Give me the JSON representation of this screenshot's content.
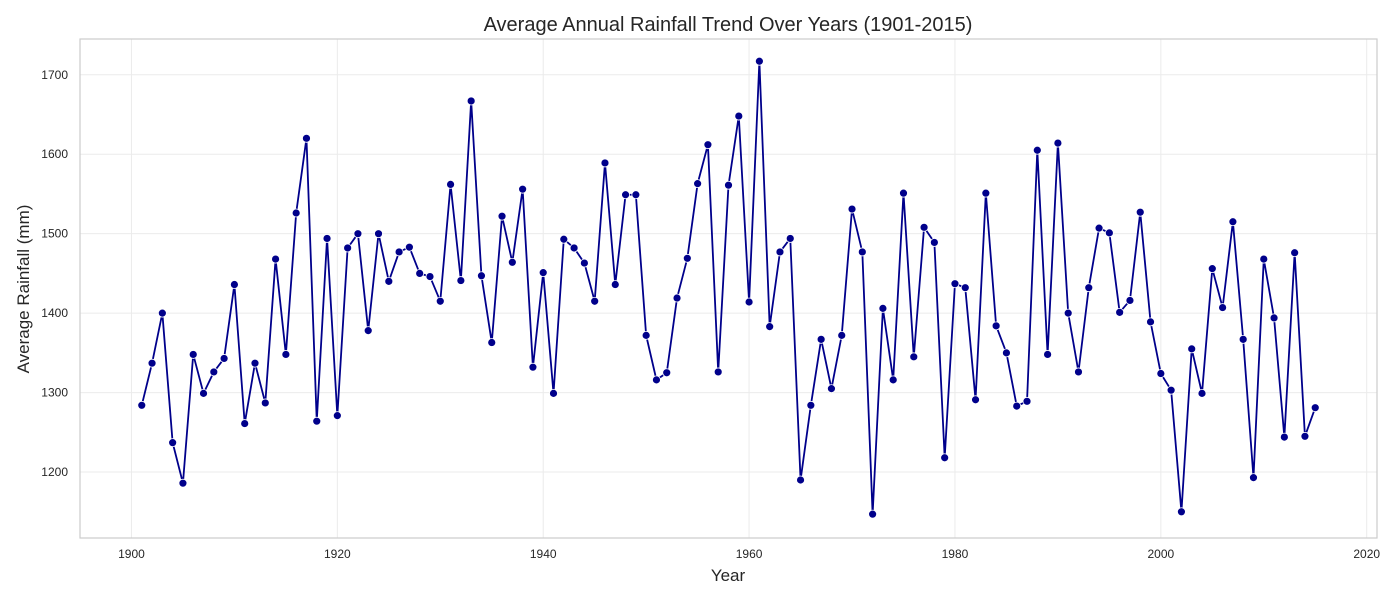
{
  "chart_data": {
    "type": "line",
    "title": "Average Annual Rainfall Trend Over Years (1901-2015)",
    "xlabel": "Year",
    "ylabel": "Average Rainfall (mm)",
    "xlim": [
      1895,
      2021
    ],
    "ylim": [
      1117,
      1745
    ],
    "xticks": [
      1900,
      1920,
      1940,
      1960,
      1980,
      2000,
      2020
    ],
    "yticks": [
      1200,
      1300,
      1400,
      1500,
      1600,
      1700
    ],
    "grid": true,
    "legend": "none",
    "marker": "circle",
    "colors": {
      "series": "#00008b",
      "grid": "#ebebeb",
      "frame": "#cccccc",
      "text": "#262626"
    },
    "series": [
      {
        "x": [
          1901,
          1902,
          1903,
          1904,
          1905,
          1906,
          1907,
          1908,
          1909,
          1910,
          1911,
          1912,
          1913,
          1914,
          1915,
          1916,
          1917,
          1918,
          1919,
          1920,
          1921,
          1922,
          1923,
          1924,
          1925,
          1926,
          1927,
          1928,
          1929,
          1930,
          1931,
          1932,
          1933,
          1934,
          1935,
          1936,
          1937,
          1938,
          1939,
          1940,
          1941,
          1942,
          1943,
          1944,
          1945,
          1946,
          1947,
          1948,
          1949,
          1950,
          1951,
          1952,
          1953,
          1954,
          1955,
          1956,
          1957,
          1958,
          1959,
          1960,
          1961,
          1962,
          1963,
          1964,
          1965,
          1966,
          1967,
          1968,
          1969,
          1970,
          1971,
          1972,
          1973,
          1974,
          1975,
          1976,
          1977,
          1978,
          1979,
          1980,
          1981,
          1982,
          1983,
          1984,
          1985,
          1986,
          1987,
          1988,
          1989,
          1990,
          1991,
          1992,
          1993,
          1994,
          1995,
          1996,
          1997,
          1998,
          1999,
          2000,
          2001,
          2002,
          2003,
          2004,
          2005,
          2006,
          2007,
          2008,
          2009,
          2010,
          2011,
          2012,
          2013,
          2014,
          2015
        ],
        "values": [
          1284,
          1337,
          1400,
          1237,
          1186,
          1348,
          1299,
          1326,
          1343,
          1436,
          1261,
          1337,
          1287,
          1468,
          1348,
          1526,
          1620,
          1264,
          1494,
          1271,
          1482,
          1500,
          1378,
          1500,
          1440,
          1477,
          1483,
          1450,
          1446,
          1415,
          1562,
          1441,
          1667,
          1447,
          1363,
          1522,
          1464,
          1556,
          1332,
          1451,
          1299,
          1493,
          1482,
          1463,
          1415,
          1589,
          1436,
          1549,
          1549,
          1372,
          1316,
          1325,
          1419,
          1469,
          1563,
          1612,
          1326,
          1561,
          1648,
          1414,
          1717,
          1383,
          1477,
          1494,
          1190,
          1284,
          1367,
          1305,
          1372,
          1531,
          1477,
          1147,
          1406,
          1316,
          1551,
          1345,
          1508,
          1489,
          1218,
          1437,
          1432,
          1291,
          1551,
          1384,
          1350,
          1283,
          1289,
          1605,
          1348,
          1614,
          1400,
          1326,
          1432,
          1507,
          1501,
          1401,
          1416,
          1527,
          1389,
          1324,
          1303,
          1150,
          1355,
          1299,
          1456,
          1407,
          1515,
          1367,
          1193,
          1468,
          1394,
          1244,
          1476,
          1245,
          1281
        ]
      }
    ]
  }
}
